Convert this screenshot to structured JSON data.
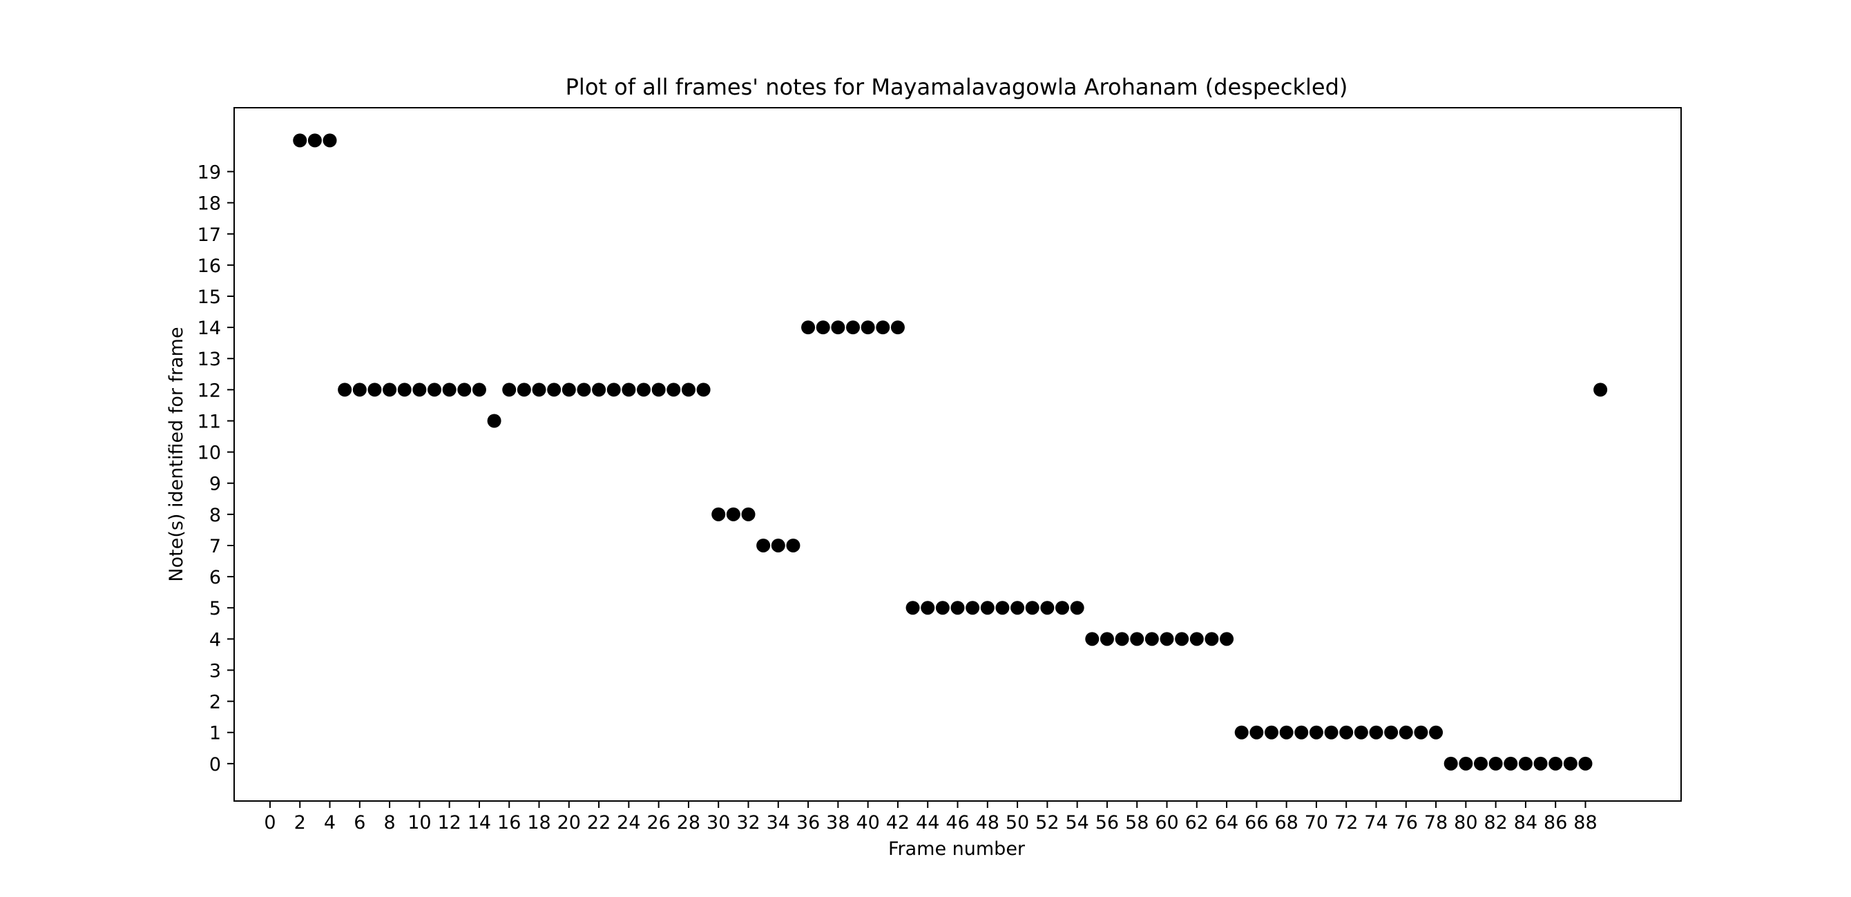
{
  "chart_data": {
    "type": "scatter",
    "title": "Plot of all frames' notes for Mayamalavagowla Arohanam (despeckled)",
    "xlabel": "Frame number",
    "ylabel": "Note(s) identified for frame",
    "xlim": [
      -2.4,
      94.4
    ],
    "ylim": [
      -1.2,
      21.05
    ],
    "xticks": [
      0,
      2,
      4,
      6,
      8,
      10,
      12,
      14,
      16,
      18,
      20,
      22,
      24,
      26,
      28,
      30,
      32,
      34,
      36,
      38,
      40,
      42,
      44,
      46,
      48,
      50,
      52,
      54,
      56,
      58,
      60,
      62,
      64,
      66,
      68,
      70,
      72,
      74,
      76,
      78,
      80,
      82,
      84,
      86,
      88
    ],
    "yticks": [
      0,
      1,
      2,
      3,
      4,
      5,
      6,
      7,
      8,
      9,
      10,
      11,
      12,
      13,
      14,
      15,
      16,
      17,
      18,
      19
    ],
    "grid": false,
    "marker_color": "#000000",
    "series": [
      {
        "x": [
          2,
          3,
          4,
          5,
          6,
          7,
          8,
          9,
          10,
          11,
          12,
          13,
          14,
          15,
          16,
          17,
          18,
          19,
          20,
          21,
          22,
          23,
          24,
          25,
          26,
          27,
          28,
          29,
          30,
          31,
          32,
          33,
          34,
          35,
          36,
          37,
          38,
          39,
          40,
          41,
          42,
          43,
          44,
          45,
          46,
          47,
          48,
          49,
          50,
          51,
          52,
          53,
          54,
          55,
          56,
          57,
          58,
          59,
          60,
          61,
          62,
          63,
          64,
          65,
          66,
          67,
          68,
          69,
          70,
          71,
          72,
          73,
          74,
          75,
          76,
          77,
          78,
          79,
          80,
          81,
          82,
          83,
          84,
          85,
          86,
          87,
          88,
          89
        ],
        "y": [
          20,
          20,
          20,
          12,
          12,
          12,
          12,
          12,
          12,
          12,
          12,
          12,
          12,
          11,
          12,
          12,
          12,
          12,
          12,
          12,
          12,
          12,
          12,
          12,
          12,
          12,
          12,
          12,
          8,
          8,
          8,
          7,
          7,
          7,
          14,
          14,
          14,
          14,
          14,
          14,
          14,
          5,
          5,
          5,
          5,
          5,
          5,
          5,
          5,
          5,
          5,
          5,
          5,
          4,
          4,
          4,
          4,
          4,
          4,
          4,
          4,
          4,
          4,
          1,
          1,
          1,
          1,
          1,
          1,
          1,
          1,
          1,
          1,
          1,
          1,
          1,
          1,
          0,
          0,
          0,
          0,
          0,
          0,
          0,
          0,
          0,
          0,
          12
        ]
      }
    ]
  }
}
